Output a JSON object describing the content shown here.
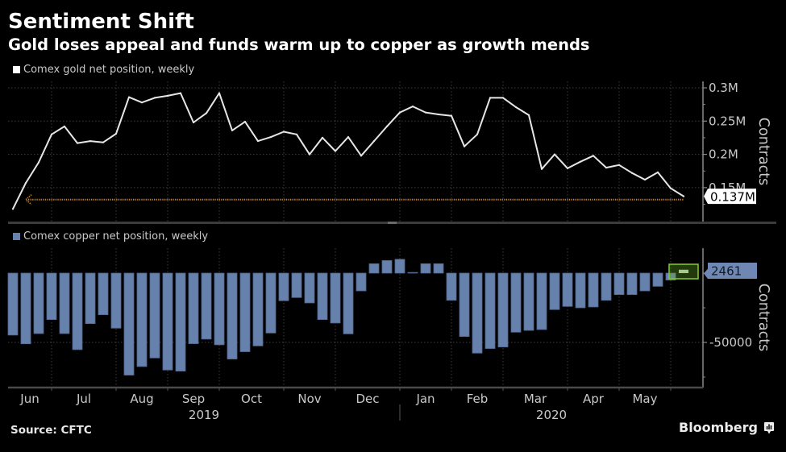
{
  "header": {
    "title": "Sentiment Shift",
    "subtitle": "Gold loses appeal and funds warm up to copper as growth mends"
  },
  "footer": {
    "source": "Source: CFTC",
    "brand": "Bloomberg"
  },
  "icons": {
    "brand_logo": "bloomberg-chat-logo-icon",
    "reference_arrow": "arrow-left-icon",
    "legend_swatch": "square-icon"
  },
  "colors": {
    "background": "#000000",
    "gold_line": "#e6e6e6",
    "copper_bar": "#6781ad",
    "copper_bar_edge": "#4f6690",
    "copper_bar_highlight": "#a8c98c",
    "highlight_box": "#7cc62a",
    "highlight_fill": "rgba(110,180,40,0.32)",
    "reference_line": "#c98424",
    "callout_gold_bg": "#ffffff",
    "callout_gold_text": "#000000",
    "callout_copper_bg": "#6f88b3",
    "callout_copper_text": "#141a26",
    "grid": "#3e3e3e",
    "axis": "#8a8a8a",
    "x_axis": "#4a4a4a",
    "text_muted": "#c9c9c9"
  },
  "x_axis": {
    "unit": "week index (weekly observations)",
    "xlim": [
      -0.375,
      53.5
    ],
    "months": [
      "Jun",
      "Jul",
      "Aug",
      "Sep",
      "Oct",
      "Nov",
      "Dec",
      "Jan",
      "Feb",
      "Mar",
      "Apr",
      "May"
    ],
    "month_ticks": [
      3,
      8,
      12,
      16,
      21,
      25,
      30,
      34,
      38,
      43,
      47,
      51
    ],
    "years": [
      {
        "label": "2019",
        "from_week": -0.375,
        "to_week": 30
      },
      {
        "label": "2020",
        "from_week": 30,
        "to_week": 53.5
      }
    ],
    "year_divider_week": 30
  },
  "chart_data": [
    {
      "type": "line",
      "name": "gold",
      "title": "Sentiment Shift",
      "legend": "Comex gold net position, weekly",
      "legend_position": "top-left",
      "xlabel": "",
      "ylabel": "Contracts",
      "axis_side": "right",
      "grid": true,
      "ylim": [
        99000,
        310000
      ],
      "y_ticks": [
        {
          "value": 300000,
          "label": "0.3M"
        },
        {
          "value": 250000,
          "label": "0.25M"
        },
        {
          "value": 200000,
          "label": "0.2M"
        },
        {
          "value": 150000,
          "label": "0.15M"
        }
      ],
      "y_minor_ticks": [
        275000,
        225000,
        175000,
        125000
      ],
      "x": [
        0,
        1,
        2,
        3,
        4,
        5,
        6,
        7,
        8,
        9,
        10,
        11,
        12,
        13,
        14,
        15,
        16,
        17,
        18,
        19,
        20,
        21,
        22,
        23,
        24,
        25,
        26,
        27,
        28,
        29,
        30,
        31,
        32,
        33,
        34,
        35,
        36,
        37,
        38,
        39,
        40,
        41,
        42,
        43,
        44,
        45,
        46,
        47,
        48,
        49,
        50,
        51,
        52
      ],
      "values": [
        118000,
        157000,
        188000,
        230000,
        242000,
        217000,
        220000,
        218000,
        231000,
        286000,
        278000,
        285000,
        288000,
        292000,
        248000,
        262000,
        292000,
        236000,
        249000,
        220000,
        226000,
        234000,
        230000,
        200000,
        225000,
        205000,
        226000,
        198000,
        220000,
        242000,
        263000,
        272000,
        263000,
        260000,
        258000,
        212000,
        230000,
        285000,
        285000,
        271000,
        259000,
        178000,
        200000,
        179000,
        189000,
        198000,
        180000,
        184000,
        172000,
        162000,
        173000,
        149000,
        137000
      ],
      "last_value_label": "0.137M",
      "reference_line": {
        "value": 132000,
        "from_week": 1,
        "to_week": 52,
        "style": "dotted",
        "arrow": "left"
      }
    },
    {
      "type": "bar",
      "name": "copper",
      "legend": "Comex copper net position, weekly",
      "legend_position": "top-left",
      "xlabel": "",
      "ylabel": "Contracts",
      "axis_side": "right",
      "grid": true,
      "ylim": [
        -82500,
        18000
      ],
      "y_ticks": [
        {
          "value": -50000,
          "label": "-50000"
        }
      ],
      "y_minor_ticks": [
        0,
        -25000,
        -75000
      ],
      "x": [
        0,
        1,
        2,
        3,
        4,
        5,
        6,
        7,
        8,
        9,
        10,
        11,
        12,
        13,
        14,
        15,
        16,
        17,
        18,
        19,
        20,
        21,
        22,
        23,
        24,
        25,
        26,
        27,
        28,
        29,
        30,
        31,
        32,
        33,
        34,
        35,
        36,
        37,
        38,
        39,
        40,
        41,
        42,
        43,
        44,
        45,
        46,
        47,
        48,
        49,
        50,
        51,
        52
      ],
      "values": [
        -44700,
        -51000,
        -43600,
        -33500,
        -43600,
        -55200,
        -36400,
        -30000,
        -39700,
        -73600,
        -67400,
        -61200,
        -69900,
        -70700,
        -50900,
        -47600,
        -51700,
        -62000,
        -56700,
        -52500,
        -43200,
        -19900,
        -17600,
        -21500,
        -33500,
        -36000,
        -43800,
        -12800,
        6800,
        9100,
        10000,
        500,
        6800,
        6800,
        -19600,
        -45700,
        -57700,
        -54400,
        -53300,
        -42600,
        -41300,
        -40700,
        -26300,
        -24000,
        -25000,
        -24400,
        -19600,
        -15500,
        -15500,
        -12800,
        -9500,
        -5000,
        2461
      ],
      "last_value_label": "2461",
      "highlight_index": 52
    }
  ]
}
